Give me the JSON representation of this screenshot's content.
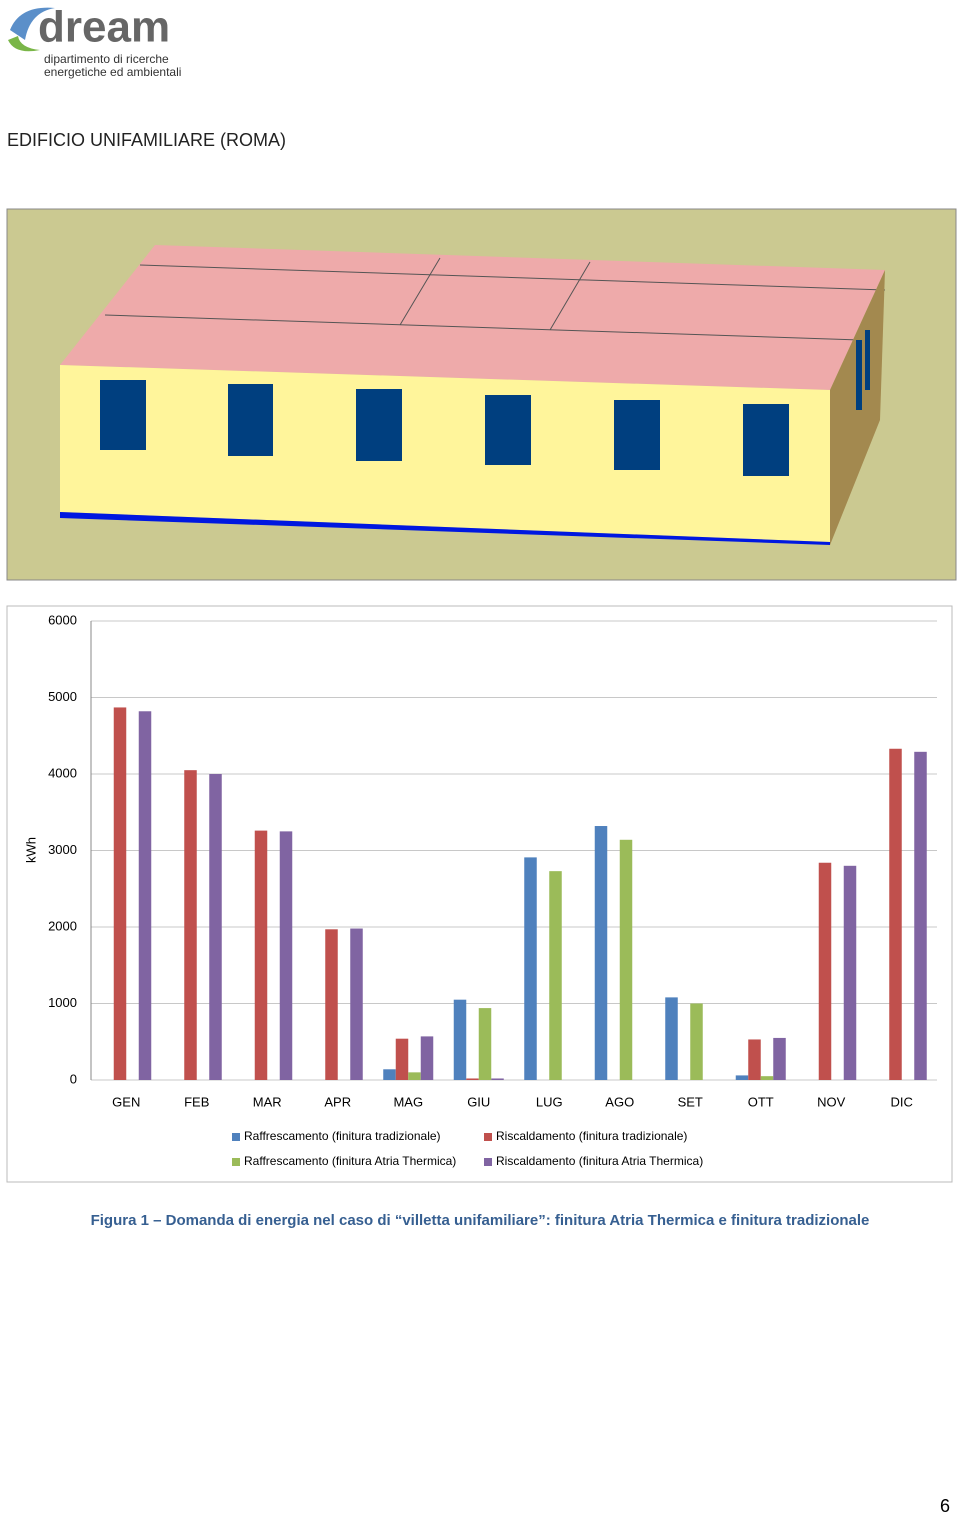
{
  "header": {
    "logo": "dream",
    "logo_line1": "dipartimento di ricerche",
    "logo_line2": "energetiche ed ambientali"
  },
  "title": "EDIFICIO UNIFAMILIARE (ROMA)",
  "chart_data": {
    "type": "bar",
    "ylabel": "kWh",
    "categories": [
      "GEN",
      "FEB",
      "MAR",
      "APR",
      "MAG",
      "GIU",
      "LUG",
      "AGO",
      "SET",
      "OTT",
      "NOV",
      "DIC"
    ],
    "series": [
      {
        "name": "Raffrescamento (finitura tradizionale)",
        "color": "#4f81bd",
        "values": [
          0,
          0,
          0,
          0,
          140,
          1050,
          2910,
          3320,
          1080,
          60,
          0,
          0
        ]
      },
      {
        "name": "Riscaldamento (finitura tradizionale)",
        "color": "#c0504d",
        "values": [
          4870,
          4050,
          3260,
          1970,
          540,
          20,
          0,
          0,
          0,
          530,
          2840,
          4330
        ]
      },
      {
        "name": "Raffrescamento (finitura Atria Thermica)",
        "color": "#9bbb59",
        "values": [
          0,
          0,
          0,
          0,
          100,
          940,
          2730,
          3140,
          1000,
          50,
          0,
          0
        ]
      },
      {
        "name": "Riscaldamento (finitura Atria Thermica)",
        "color": "#8064a2",
        "values": [
          4820,
          4000,
          3250,
          1980,
          570,
          20,
          0,
          0,
          0,
          550,
          2800,
          4290
        ]
      }
    ],
    "ylim": [
      0,
      6000
    ],
    "yticks": [
      0,
      1000,
      2000,
      3000,
      4000,
      5000,
      6000
    ],
    "grid": true
  },
  "caption": "Figura 1 – Domanda di energia nel caso di “villetta unifamiliare”: finitura Atria Thermica e finitura tradizionale",
  "page_number": "6"
}
